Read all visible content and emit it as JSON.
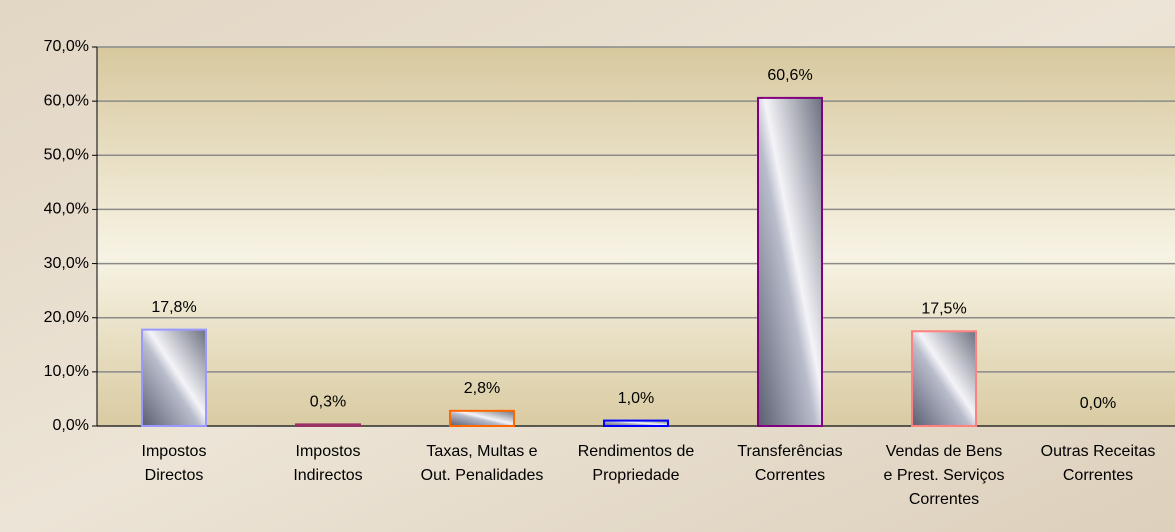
{
  "chart_data": {
    "type": "bar",
    "categories": [
      [
        "Impostos",
        "Directos"
      ],
      [
        "Impostos",
        "Indirectos"
      ],
      [
        "Taxas, Multas e",
        "Out. Penalidades"
      ],
      [
        "Rendimentos de",
        "Propriedade"
      ],
      [
        "Transferências",
        "Correntes"
      ],
      [
        "Vendas de Bens",
        "e Prest. Serviços",
        "Correntes"
      ],
      [
        "Outras Receitas",
        "Correntes"
      ]
    ],
    "values": [
      17.8,
      0.3,
      2.8,
      1.0,
      60.6,
      17.5,
      0.0
    ],
    "value_labels": [
      "17,8%",
      "0,3%",
      "2,8%",
      "1,0%",
      "60,6%",
      "17,5%",
      "0,0%"
    ],
    "colors": [
      "#9999ff",
      "#993366",
      "#ff6600",
      "#0000ff",
      "#800080",
      "#ff8080",
      "#808080"
    ],
    "ylim": [
      0,
      70
    ],
    "yticks": [
      {
        "value": 0,
        "label": "0,0%"
      },
      {
        "value": 10,
        "label": "10,0%"
      },
      {
        "value": 20,
        "label": "20,0%"
      },
      {
        "value": 30,
        "label": "30,0%"
      },
      {
        "value": 40,
        "label": "40,0%"
      },
      {
        "value": 50,
        "label": "50,0%"
      },
      {
        "value": 60,
        "label": "60,0%"
      },
      {
        "value": 70,
        "label": "70,0%"
      }
    ],
    "grid": true
  }
}
